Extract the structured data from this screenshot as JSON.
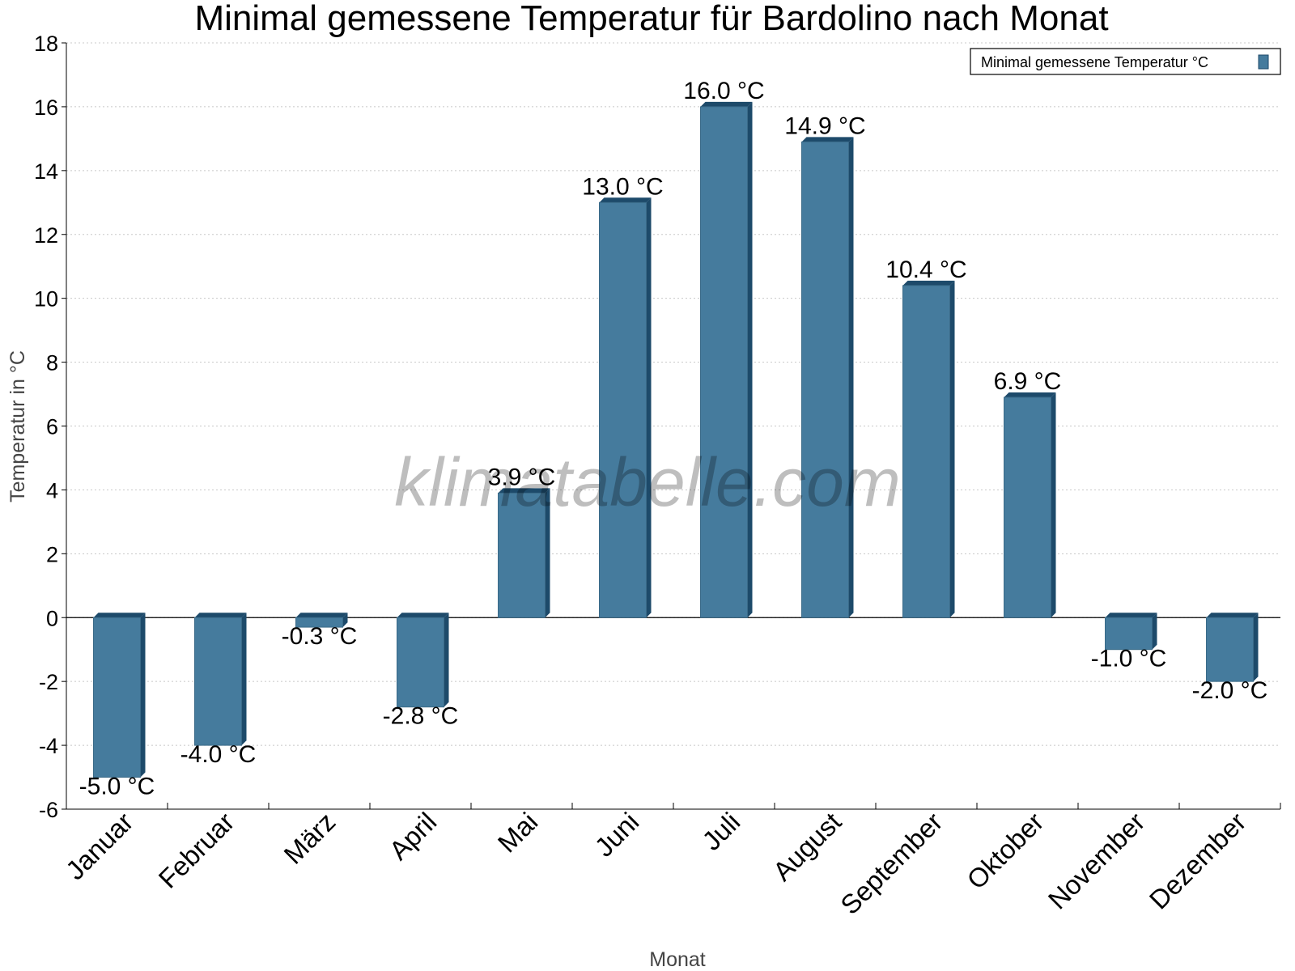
{
  "chart_data": {
    "type": "bar",
    "title": "Minimal gemessene Temperatur für Bardolino nach Monat",
    "xlabel": "Monat",
    "ylabel": "Temperatur in °C",
    "categories": [
      "Januar",
      "Februar",
      "März",
      "April",
      "Mai",
      "Juni",
      "Juli",
      "August",
      "September",
      "Oktober",
      "November",
      "Dezember"
    ],
    "series": [
      {
        "name": "Minimal gemessene Temperatur °C",
        "values": [
          -5.0,
          -4.0,
          -0.3,
          -2.8,
          3.9,
          13.0,
          16.0,
          14.9,
          10.4,
          6.9,
          -1.0,
          -2.0
        ],
        "labels": [
          "-5.0 °C",
          "-4.0 °C",
          "-0.3 °C",
          "-2.8 °C",
          "3.9 °C",
          "13.0 °C",
          "16.0 °C",
          "14.9 °C",
          "10.4 °C",
          "6.9 °C",
          "-1.0 °C",
          "-2.0 °C"
        ],
        "color": "#457b9d"
      }
    ],
    "ylim": [
      -6,
      18
    ],
    "yticks": [
      "-6",
      "-4",
      "-2",
      "0",
      "2",
      "4",
      "6",
      "8",
      "10",
      "12",
      "14",
      "16",
      "18"
    ],
    "grid": true,
    "legend_position": "top-right",
    "watermark": "klimatabelle.com"
  }
}
